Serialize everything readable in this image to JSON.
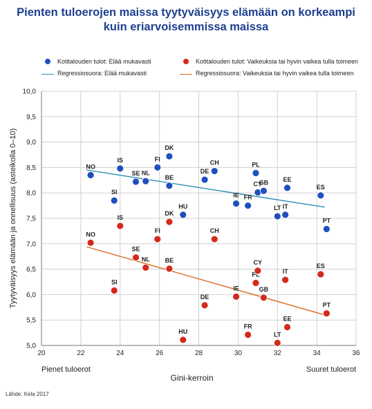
{
  "title_line1": "Pienten tuloerojen maissa tyytyväisyys elämään on korkeampi",
  "title_line2": "kuin eriarvoisemmissa maissa",
  "legend": {
    "blue_dots": "Kotitalouden tulot: Elää mukavasti",
    "red_dots": "Kotitalouden tulot: Vaikeuksia tai hyvin vaikea tulla toimeen",
    "blue_line": "Regressiosuora: Elää mukavasti",
    "red_line": "Regressiosuora: Vaikeuksia tai hyvin vaikea tulla toimeen"
  },
  "source": "Lähde: Kela 2017",
  "colors": {
    "blue": "#1f4fbf",
    "red": "#d42a1e",
    "blue_line": "#2a8fb8",
    "red_line": "#d9691c"
  },
  "chart_data": {
    "type": "scatter",
    "xlabel": "Gini-kerroin",
    "ylabel": "Tyytyväisyys elämään ja onnellisuus (asteikolla 0–10)",
    "x_left_label": "Pienet tuloerot",
    "x_right_label": "Suuret tuloerot",
    "xlim": [
      20,
      36
    ],
    "ylim": [
      5.0,
      10.0
    ],
    "x_ticks": [
      "20",
      "22",
      "24",
      "26",
      "28",
      "30",
      "32",
      "34",
      "36"
    ],
    "y_ticks": [
      "5,0",
      "5,5",
      "6,0",
      "6,5",
      "7,0",
      "7,5",
      "8,0",
      "8,5",
      "9,0",
      "9,5",
      "10,0"
    ],
    "grid": true,
    "series": [
      {
        "name": "Kotitalouden tulot: Elää mukavasti",
        "points": [
          {
            "label": "NO",
            "x": 22.5,
            "y": 8.35
          },
          {
            "label": "SI",
            "x": 23.7,
            "y": 7.85
          },
          {
            "label": "IS",
            "x": 24.0,
            "y": 8.48
          },
          {
            "label": "SE",
            "x": 24.8,
            "y": 8.22
          },
          {
            "label": "NL",
            "x": 25.3,
            "y": 8.23
          },
          {
            "label": "FI",
            "x": 25.9,
            "y": 8.5
          },
          {
            "label": "DK",
            "x": 26.5,
            "y": 8.72
          },
          {
            "label": "BE",
            "x": 26.5,
            "y": 8.14
          },
          {
            "label": "HU",
            "x": 27.2,
            "y": 7.57
          },
          {
            "label": "DE",
            "x": 28.3,
            "y": 8.26
          },
          {
            "label": "CH",
            "x": 28.8,
            "y": 8.43
          },
          {
            "label": "IE",
            "x": 29.9,
            "y": 7.79
          },
          {
            "label": "FR",
            "x": 30.5,
            "y": 7.75
          },
          {
            "label": "PL",
            "x": 30.9,
            "y": 8.39
          },
          {
            "label": "CY",
            "x": 31.0,
            "y": 8.01
          },
          {
            "label": "GB",
            "x": 31.3,
            "y": 8.04
          },
          {
            "label": "LT",
            "x": 32.0,
            "y": 7.54
          },
          {
            "label": "IT",
            "x": 32.4,
            "y": 7.57
          },
          {
            "label": "EE",
            "x": 32.5,
            "y": 8.1
          },
          {
            "label": "ES",
            "x": 34.2,
            "y": 7.95
          },
          {
            "label": "PT",
            "x": 34.5,
            "y": 7.29
          }
        ]
      },
      {
        "name": "Kotitalouden tulot: Vaikeuksia tai hyvin vaikea tulla toimeen",
        "points": [
          {
            "label": "NO",
            "x": 22.5,
            "y": 7.02
          },
          {
            "label": "SI",
            "x": 23.7,
            "y": 6.08
          },
          {
            "label": "IS",
            "x": 24.0,
            "y": 7.35
          },
          {
            "label": "SE",
            "x": 24.8,
            "y": 6.73
          },
          {
            "label": "NL",
            "x": 25.3,
            "y": 6.53
          },
          {
            "label": "FI",
            "x": 25.9,
            "y": 7.09
          },
          {
            "label": "DK",
            "x": 26.5,
            "y": 7.43
          },
          {
            "label": "BE",
            "x": 26.5,
            "y": 6.51
          },
          {
            "label": "HU",
            "x": 27.2,
            "y": 5.11
          },
          {
            "label": "DE",
            "x": 28.3,
            "y": 5.79
          },
          {
            "label": "CH",
            "x": 28.8,
            "y": 7.09
          },
          {
            "label": "IE",
            "x": 29.9,
            "y": 5.96
          },
          {
            "label": "FR",
            "x": 30.5,
            "y": 5.21
          },
          {
            "label": "PL",
            "x": 30.9,
            "y": 6.23
          },
          {
            "label": "CY",
            "x": 31.0,
            "y": 6.47
          },
          {
            "label": "GB",
            "x": 31.3,
            "y": 5.94
          },
          {
            "label": "LT",
            "x": 32.0,
            "y": 5.05
          },
          {
            "label": "IT",
            "x": 32.4,
            "y": 6.29
          },
          {
            "label": "EE",
            "x": 32.5,
            "y": 5.36
          },
          {
            "label": "ES",
            "x": 34.2,
            "y": 6.4
          },
          {
            "label": "PT",
            "x": 34.5,
            "y": 5.63
          }
        ]
      }
    ],
    "regression_lines": [
      {
        "name": "Regressiosuora: Elää mukavasti",
        "x": [
          22.3,
          34.4
        ],
        "y": [
          8.45,
          7.72
        ]
      },
      {
        "name": "Regressiosuora: Vaikeuksia tai hyvin vaikea tulla toimeen",
        "x": [
          22.3,
          34.4
        ],
        "y": [
          6.94,
          5.6
        ]
      }
    ]
  }
}
